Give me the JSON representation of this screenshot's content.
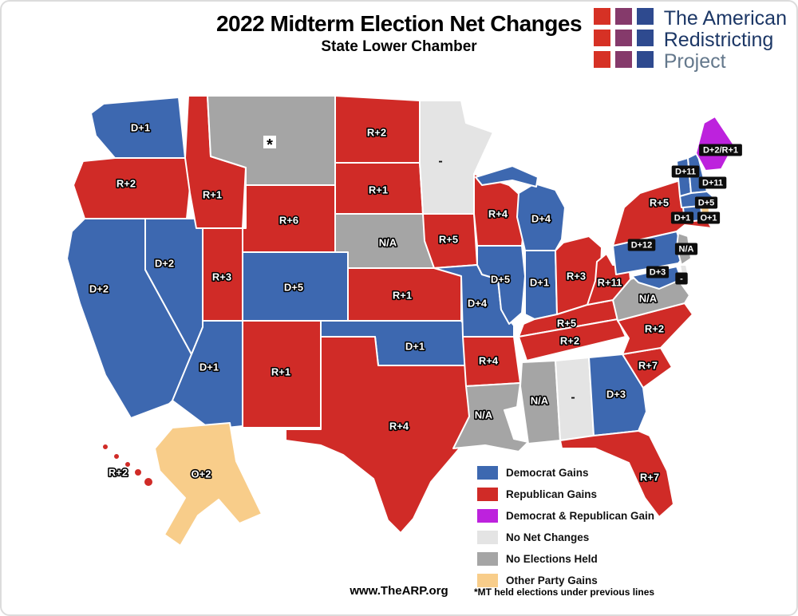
{
  "header": {
    "title": "2022 Midterm Election Net Changes",
    "subtitle": "State Lower Chamber"
  },
  "logo": {
    "line1": "The American",
    "line2": "Redistricting",
    "line3": "Project",
    "square_colors": [
      "#d63125",
      "#853a6b",
      "#2e4a8f"
    ]
  },
  "footer": {
    "website": "www.TheARP.org",
    "footnote": "*MT held elections under previous lines"
  },
  "chart_data": {
    "type": "choropleth",
    "region": "United States",
    "categories": {
      "dem": {
        "label": "Democrat Gains",
        "color": "#3d68b0"
      },
      "rep": {
        "label": "Republican Gains",
        "color": "#d02b27"
      },
      "both": {
        "label": "Democrat & Republican Gain",
        "color": "#bd22dd"
      },
      "none": {
        "label": "No Net Changes",
        "color": "#e4e4e4"
      },
      "noelec": {
        "label": "No Elections Held",
        "color": "#a5a5a5"
      },
      "other": {
        "label": "Other Party Gains",
        "color": "#f8cd8a"
      }
    },
    "legend_order": [
      "dem",
      "rep",
      "both",
      "none",
      "noelec",
      "other"
    ],
    "states": [
      {
        "abbr": "WA",
        "name": "Washington",
        "label": "D+1",
        "category": "dem"
      },
      {
        "abbr": "OR",
        "name": "Oregon",
        "label": "R+2",
        "category": "rep"
      },
      {
        "abbr": "CA",
        "name": "California",
        "label": "D+2",
        "category": "dem"
      },
      {
        "abbr": "NV",
        "name": "Nevada",
        "label": "D+2",
        "category": "dem"
      },
      {
        "abbr": "ID",
        "name": "Idaho",
        "label": "R+1",
        "category": "rep"
      },
      {
        "abbr": "MT",
        "name": "Montana",
        "label": "*",
        "category": "noelec"
      },
      {
        "abbr": "WY",
        "name": "Wyoming",
        "label": "R+6",
        "category": "rep"
      },
      {
        "abbr": "UT",
        "name": "Utah",
        "label": "R+3",
        "category": "rep"
      },
      {
        "abbr": "CO",
        "name": "Colorado",
        "label": "D+5",
        "category": "dem"
      },
      {
        "abbr": "AZ",
        "name": "Arizona",
        "label": "D+1",
        "category": "dem"
      },
      {
        "abbr": "NM",
        "name": "New Mexico",
        "label": "R+1",
        "category": "rep"
      },
      {
        "abbr": "ND",
        "name": "North Dakota",
        "label": "R+2",
        "category": "rep"
      },
      {
        "abbr": "SD",
        "name": "South Dakota",
        "label": "R+1",
        "category": "rep"
      },
      {
        "abbr": "NE",
        "name": "Nebraska",
        "label": "N/A",
        "category": "noelec"
      },
      {
        "abbr": "KS",
        "name": "Kansas",
        "label": "R+1",
        "category": "rep"
      },
      {
        "abbr": "OK",
        "name": "Oklahoma",
        "label": "D+1",
        "category": "dem"
      },
      {
        "abbr": "TX",
        "name": "Texas",
        "label": "R+4",
        "category": "rep"
      },
      {
        "abbr": "MN",
        "name": "Minnesota",
        "label": "-",
        "category": "none"
      },
      {
        "abbr": "IA",
        "name": "Iowa",
        "label": "R+5",
        "category": "rep"
      },
      {
        "abbr": "MO",
        "name": "Missouri",
        "label": "D+4",
        "category": "dem"
      },
      {
        "abbr": "AR",
        "name": "Arkansas",
        "label": "R+4",
        "category": "rep"
      },
      {
        "abbr": "LA",
        "name": "Louisiana",
        "label": "N/A",
        "category": "noelec"
      },
      {
        "abbr": "WI",
        "name": "Wisconsin",
        "label": "R+4",
        "category": "rep"
      },
      {
        "abbr": "IL",
        "name": "Illinois",
        "label": "D+5",
        "category": "dem"
      },
      {
        "abbr": "IN",
        "name": "Indiana",
        "label": "D+1",
        "category": "dem"
      },
      {
        "abbr": "MI",
        "name": "Michigan",
        "label": "D+4",
        "category": "dem"
      },
      {
        "abbr": "OH",
        "name": "Ohio",
        "label": "R+3",
        "category": "rep"
      },
      {
        "abbr": "KY",
        "name": "Kentucky",
        "label": "R+5",
        "category": "rep"
      },
      {
        "abbr": "TN",
        "name": "Tennessee",
        "label": "R+2",
        "category": "rep"
      },
      {
        "abbr": "MS",
        "name": "Mississippi",
        "label": "N/A",
        "category": "noelec"
      },
      {
        "abbr": "AL",
        "name": "Alabama",
        "label": "-",
        "category": "none"
      },
      {
        "abbr": "GA",
        "name": "Georgia",
        "label": "D+3",
        "category": "dem"
      },
      {
        "abbr": "FL",
        "name": "Florida",
        "label": "R+7",
        "category": "rep"
      },
      {
        "abbr": "SC",
        "name": "South Carolina",
        "label": "R+7",
        "category": "rep"
      },
      {
        "abbr": "NC",
        "name": "North Carolina",
        "label": "R+2",
        "category": "rep"
      },
      {
        "abbr": "VA",
        "name": "Virginia",
        "label": "N/A",
        "category": "noelec"
      },
      {
        "abbr": "WV",
        "name": "West Virginia",
        "label": "R+11",
        "category": "rep"
      },
      {
        "abbr": "PA",
        "name": "Pennsylvania",
        "label": "D+12",
        "category": "dem"
      },
      {
        "abbr": "NY",
        "name": "New York",
        "label": "R+5",
        "category": "rep"
      },
      {
        "abbr": "NJ",
        "name": "New Jersey",
        "label": "N/A",
        "category": "noelec"
      },
      {
        "abbr": "MD",
        "name": "Maryland",
        "label": "D+3",
        "category": "dem"
      },
      {
        "abbr": "DE",
        "name": "Delaware",
        "label": "-",
        "category": "none"
      },
      {
        "abbr": "VT",
        "name": "Vermont",
        "label": "D+11",
        "category": "dem"
      },
      {
        "abbr": "NH",
        "name": "New Hampshire",
        "label": "D+11",
        "category": "dem"
      },
      {
        "abbr": "ME",
        "name": "Maine",
        "label": "D+2/R+1",
        "category": "both"
      },
      {
        "abbr": "MA",
        "name": "Massachusetts",
        "label": "D+1",
        "category": "dem"
      },
      {
        "abbr": "RI",
        "name": "Rhode Island",
        "label": "O+1",
        "category": "other"
      },
      {
        "abbr": "CT",
        "name": "Connecticut",
        "label": "D+5",
        "category": "dem"
      },
      {
        "abbr": "AK",
        "name": "Alaska",
        "label": "O+2",
        "category": "other"
      },
      {
        "abbr": "HI",
        "name": "Hawaii",
        "label": "R+2",
        "category": "rep"
      }
    ]
  }
}
